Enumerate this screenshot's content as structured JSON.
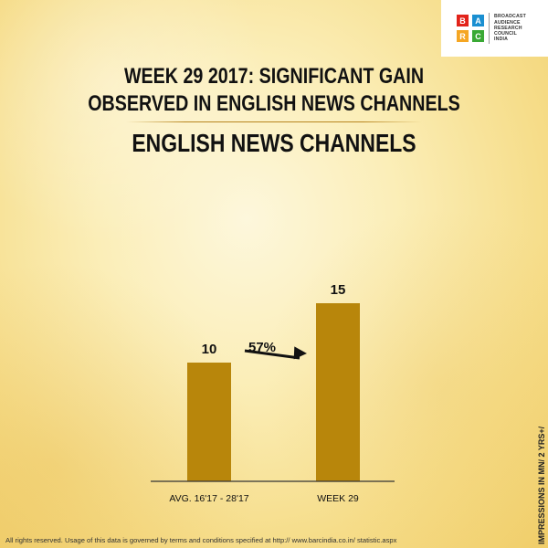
{
  "logo": {
    "letters": [
      "B",
      "A",
      "R",
      "C"
    ],
    "colors": [
      "#e2231a",
      "#1a8fd1",
      "#f5a623",
      "#3aa935"
    ],
    "text_lines": [
      "BROADCAST",
      "AUDIENCE",
      "RESEARCH",
      "COUNCIL",
      "INDIA"
    ]
  },
  "header": {
    "title_line1": "WEEK 29 2017: SIGNIFICANT GAIN",
    "title_line2": "OBSERVED IN ENGLISH NEWS CHANNELS",
    "subtitle": "ENGLISH NEWS CHANNELS"
  },
  "chart_data": {
    "type": "bar",
    "categories": [
      "AVG. 16'17 - 28'17",
      "WEEK 29"
    ],
    "values": [
      10,
      15
    ],
    "data_labels": [
      "10",
      "15"
    ],
    "bar_color": "#b8860b",
    "annotation": {
      "text": "57%",
      "arrow": true
    },
    "axis_note": "IMPRESSIONS IN MN/ 2 YRS+/"
  },
  "footer": {
    "text": "All rights reserved. Usage of this data is governed by terms and conditions specified at http:// www.barcindia.co.in/ statistic.aspx"
  }
}
